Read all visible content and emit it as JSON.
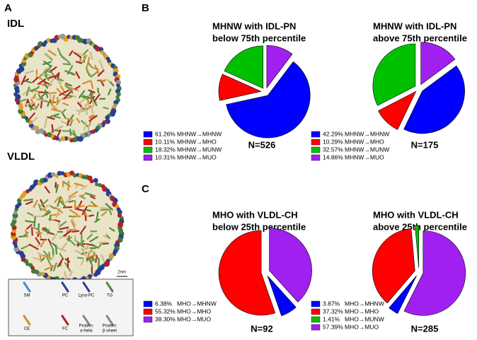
{
  "panel_a": {
    "label": "A",
    "particles": [
      "IDL",
      "VLDL"
    ],
    "scale_bar": "2nm",
    "legend": [
      [
        "SM"
      ],
      [
        "PC"
      ],
      [
        "Lyso-PC"
      ],
      [
        "TG"
      ],
      [
        "CE"
      ],
      [
        "FC"
      ],
      [
        "Protein:",
        "α-helix"
      ],
      [
        "Protein:",
        "β-sheet"
      ]
    ]
  },
  "panel_labels": [
    "B",
    "C"
  ],
  "chart_data": [
    {
      "type": "pie",
      "title": [
        "MHNW with IDL-PN",
        "below 75th percentile"
      ],
      "categories": [
        "MHNW→MHNW",
        "MHNW→MHO",
        "MHNW→MUNW",
        "MHNW→MUO"
      ],
      "values": [
        61.26,
        10.11,
        18.32,
        10.31
      ],
      "value_labels": [
        "61.26%",
        "10.11%",
        "18.32%",
        "10.31%"
      ],
      "colors": [
        "#0000ff",
        "#ff0000",
        "#00c000",
        "#a020f0"
      ],
      "n_label": "N=526"
    },
    {
      "type": "pie",
      "title": [
        "MHNW with IDL-PN",
        "above 75th percentile"
      ],
      "categories": [
        "MHNW→MHNW",
        "MHNW→MHO",
        "MHNW→MUNW",
        "MHNW→MUO"
      ],
      "values": [
        42.29,
        10.29,
        32.57,
        14.86
      ],
      "value_labels": [
        "42.29%",
        "10.29%",
        "32.57%",
        "14.86%"
      ],
      "colors": [
        "#0000ff",
        "#ff0000",
        "#00c000",
        "#a020f0"
      ],
      "n_label": "N=175"
    },
    {
      "type": "pie",
      "title": [
        "MHO with VLDL-CH",
        "below 25th percentile"
      ],
      "categories": [
        "MHO→MHNW",
        "MHO→MHO",
        "MHO→MUO"
      ],
      "values": [
        6.38,
        55.32,
        38.3
      ],
      "value_labels": [
        "6.38%",
        "55.32%",
        "38.30%"
      ],
      "colors": [
        "#0000ff",
        "#ff0000",
        "#a020f0"
      ],
      "n_label": "N=92"
    },
    {
      "type": "pie",
      "title": [
        "MHO with VLDL-CH",
        "above 25th percentile"
      ],
      "categories": [
        "MHO→MHNW",
        "MHO→MHO",
        "MHO→MUNW",
        "MHO→MUO"
      ],
      "values": [
        3.87,
        37.32,
        1.41,
        57.39
      ],
      "value_labels": [
        "3.87%",
        "37.32%",
        "1.41%",
        "57.39%"
      ],
      "colors": [
        "#0000ff",
        "#ff0000",
        "#00c000",
        "#a020f0"
      ],
      "n_label": "N=285"
    }
  ]
}
